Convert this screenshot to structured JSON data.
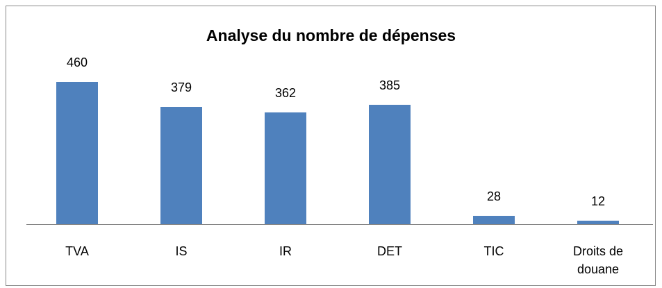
{
  "chart_data": {
    "type": "bar",
    "title": "Analyse du nombre de dépenses",
    "categories": [
      "TVA",
      "IS",
      "IR",
      "DET",
      "TIC",
      "Droits de douane"
    ],
    "values": [
      460,
      379,
      362,
      385,
      28,
      12
    ],
    "color": "#4f81bd"
  }
}
